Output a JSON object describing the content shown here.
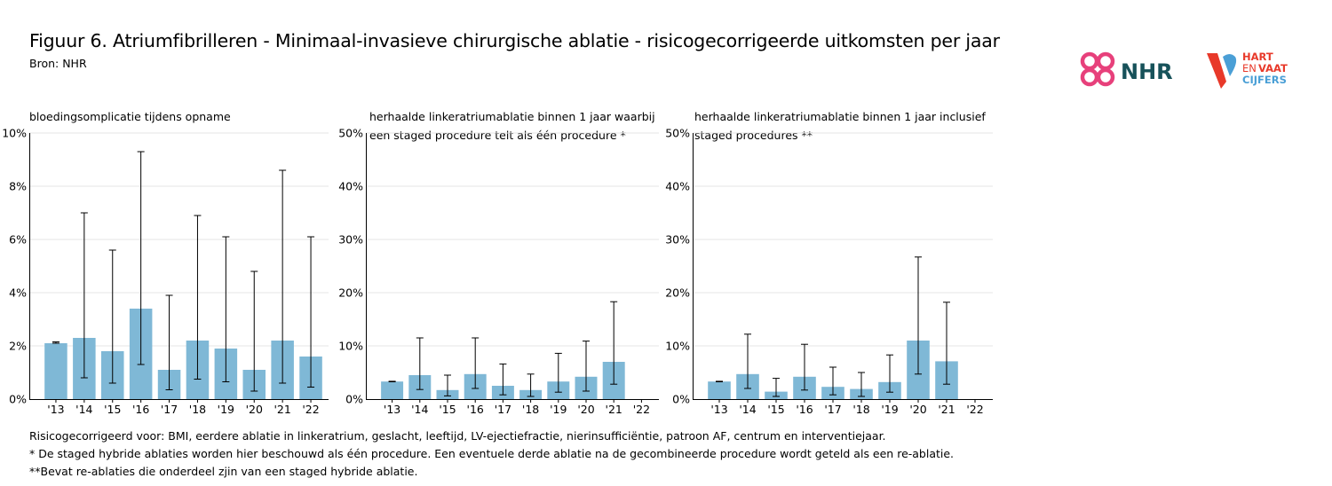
{
  "title": "Figuur 6. Atriumfibrilleren - Minimaal-invasieve chirurgische ablatie - risicogecorrigeerde uitkomsten per jaar",
  "source": "Bron: NHR",
  "logos": {
    "nhr": "NHR",
    "hartenvaat": [
      "HART",
      "EN",
      "VAAT",
      "CIJFERS"
    ]
  },
  "colors": {
    "bar": "#7fb8d6",
    "errorbar": "#000000",
    "grid": "#e6e6e6",
    "logo_pink": "#e7407b",
    "logo_teal": "#17525a",
    "logo_red": "#e8392a",
    "logo_blue": "#4a9fd6"
  },
  "panels": [
    {
      "title_lines": [
        "bloedingsomplicatie tijdens opname"
      ]
    },
    {
      "title_lines": [
        "herhaalde linkeratriumablatie binnen 1 jaar waarbij",
        "een staged procedure telt als één procedure *"
      ]
    },
    {
      "title_lines": [
        "herhaalde linkeratriumablatie binnen 1 jaar inclusief",
        "staged procedures **"
      ]
    }
  ],
  "chart_data": [
    {
      "type": "bar",
      "title": "bloedingsomplicatie tijdens opname",
      "categories": [
        "'13",
        "'14",
        "'15",
        "'16",
        "'17",
        "'18",
        "'19",
        "'20",
        "'21",
        "'22"
      ],
      "values": [
        2.1,
        2.3,
        1.8,
        3.4,
        1.1,
        2.2,
        1.9,
        1.1,
        2.2,
        1.6
      ],
      "error_low": [
        2.1,
        0.8,
        0.6,
        1.3,
        0.35,
        0.75,
        0.65,
        0.3,
        0.6,
        0.45
      ],
      "error_high": [
        2.15,
        7.0,
        5.6,
        9.3,
        3.9,
        6.9,
        6.1,
        4.8,
        8.6,
        6.1
      ],
      "ylim": [
        0,
        10
      ],
      "yticks": [
        "0%",
        "2%",
        "4%",
        "6%",
        "8%",
        "10%"
      ],
      "ytick_values": [
        0,
        2,
        4,
        6,
        8,
        10
      ],
      "grid": true
    },
    {
      "type": "bar",
      "title": "herhaalde linkeratriumablatie binnen 1 jaar waarbij een staged procedure telt als één procedure *",
      "categories": [
        "'13",
        "'14",
        "'15",
        "'16",
        "'17",
        "'18",
        "'19",
        "'20",
        "'21",
        "'22"
      ],
      "values": [
        3.3,
        4.5,
        1.7,
        4.7,
        2.5,
        1.7,
        3.3,
        4.2,
        7.0,
        null
      ],
      "error_low": [
        3.25,
        1.8,
        0.6,
        2.0,
        0.8,
        0.5,
        1.3,
        1.5,
        2.8,
        null
      ],
      "error_high": [
        3.35,
        11.5,
        4.5,
        11.5,
        6.6,
        4.7,
        8.6,
        10.9,
        18.3,
        null
      ],
      "ylim": [
        0,
        50
      ],
      "yticks": [
        "0%",
        "10%",
        "20%",
        "30%",
        "40%",
        "50%"
      ],
      "ytick_values": [
        0,
        10,
        20,
        30,
        40,
        50
      ],
      "grid": true
    },
    {
      "type": "bar",
      "title": "herhaalde linkeratriumablatie binnen 1 jaar inclusief staged procedures **",
      "categories": [
        "'13",
        "'14",
        "'15",
        "'16",
        "'17",
        "'18",
        "'19",
        "'20",
        "'21",
        "'22"
      ],
      "values": [
        3.3,
        4.7,
        1.4,
        4.2,
        2.3,
        1.9,
        3.2,
        11.0,
        7.1,
        null
      ],
      "error_low": [
        3.25,
        2.0,
        0.5,
        1.7,
        0.8,
        0.5,
        1.3,
        4.7,
        2.8,
        null
      ],
      "error_high": [
        3.35,
        12.2,
        3.9,
        10.3,
        6.0,
        5.0,
        8.3,
        26.7,
        18.2,
        null
      ],
      "ylim": [
        0,
        50
      ],
      "yticks": [
        "0%",
        "10%",
        "20%",
        "30%",
        "40%",
        "50%"
      ],
      "ytick_values": [
        0,
        10,
        20,
        30,
        40,
        50
      ],
      "grid": true
    }
  ],
  "notes": [
    "Risicogecorrigeerd voor: BMI, eerdere ablatie in linkeratrium, geslacht, leeftijd, LV-ejectiefractie, nierinsufficiëntie, patroon AF, centrum en interventiejaar.",
    "* De staged hybride ablaties worden hier beschouwd als één procedure. Een eventuele derde ablatie na de gecombineerde procedure wordt geteld als een re-ablatie.",
    "**Bevat re-ablaties die onderdeel zjin van een staged hybride ablatie."
  ]
}
